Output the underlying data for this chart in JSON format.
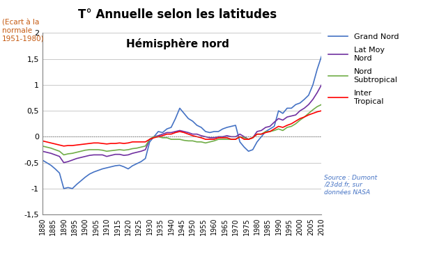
{
  "title1": "T° Annuelle selon les latitudes",
  "title2": "Hémisphère nord",
  "ylabel_text": "(Ecart à la\nnormale\n1951-1980)",
  "source_text": "Source : Dumont\n/23dd.fr, sur\ndonnées NASA",
  "ylim": [
    -1.5,
    2.0
  ],
  "yticks": [
    -1.5,
    -1.0,
    -0.5,
    0.0,
    0.5,
    1.0,
    1.5,
    2.0
  ],
  "ytick_labels": [
    "-1,5",
    "-1",
    "-0,5",
    "0",
    "0,5",
    "1",
    "1,5",
    "2"
  ],
  "colors": {
    "Grand Nord": "#4472C4",
    "Lat Moy Nord": "#7030A0",
    "Nord Subtropical": "#70AD47",
    "Inter Tropical": "#FF0000"
  },
  "years": [
    1880,
    1882,
    1884,
    1886,
    1888,
    1890,
    1892,
    1894,
    1896,
    1898,
    1900,
    1902,
    1904,
    1906,
    1908,
    1910,
    1912,
    1914,
    1916,
    1918,
    1920,
    1922,
    1924,
    1926,
    1928,
    1930,
    1932,
    1934,
    1936,
    1938,
    1940,
    1942,
    1944,
    1946,
    1948,
    1950,
    1952,
    1954,
    1956,
    1958,
    1960,
    1962,
    1964,
    1966,
    1968,
    1970,
    1972,
    1974,
    1976,
    1978,
    1980,
    1982,
    1984,
    1986,
    1988,
    1990,
    1992,
    1994,
    1996,
    1998,
    2000,
    2002,
    2004,
    2006,
    2008,
    2010
  ],
  "Grand Nord": [
    -0.45,
    -0.5,
    -0.55,
    -0.62,
    -0.7,
    -1.0,
    -0.98,
    -1.0,
    -0.92,
    -0.85,
    -0.78,
    -0.72,
    -0.68,
    -0.65,
    -0.62,
    -0.6,
    -0.58,
    -0.56,
    -0.55,
    -0.58,
    -0.62,
    -0.56,
    -0.52,
    -0.48,
    -0.42,
    -0.1,
    0.0,
    0.1,
    0.08,
    0.15,
    0.18,
    0.35,
    0.55,
    0.45,
    0.35,
    0.3,
    0.22,
    0.18,
    0.1,
    0.08,
    0.1,
    0.1,
    0.15,
    0.18,
    0.2,
    0.22,
    -0.1,
    -0.2,
    -0.28,
    -0.25,
    -0.1,
    0.0,
    0.1,
    0.15,
    0.2,
    0.5,
    0.45,
    0.55,
    0.55,
    0.62,
    0.65,
    0.72,
    0.8,
    1.0,
    1.3,
    1.55
  ],
  "Lat Moy Nord": [
    -0.28,
    -0.3,
    -0.32,
    -0.35,
    -0.38,
    -0.5,
    -0.48,
    -0.45,
    -0.42,
    -0.4,
    -0.38,
    -0.36,
    -0.35,
    -0.35,
    -0.35,
    -0.38,
    -0.36,
    -0.34,
    -0.34,
    -0.36,
    -0.35,
    -0.32,
    -0.3,
    -0.28,
    -0.25,
    -0.05,
    0.0,
    0.02,
    0.05,
    0.08,
    0.08,
    0.1,
    0.12,
    0.1,
    0.08,
    0.05,
    0.05,
    0.02,
    0.0,
    -0.02,
    -0.02,
    0.0,
    0.0,
    0.02,
    0.0,
    0.0,
    0.05,
    0.0,
    -0.05,
    -0.02,
    0.1,
    0.12,
    0.18,
    0.2,
    0.28,
    0.35,
    0.32,
    0.38,
    0.4,
    0.42,
    0.5,
    0.55,
    0.62,
    0.72,
    0.85,
    1.0
  ],
  "Nord Subtropical": [
    -0.18,
    -0.2,
    -0.22,
    -0.25,
    -0.28,
    -0.35,
    -0.33,
    -0.32,
    -0.3,
    -0.28,
    -0.26,
    -0.25,
    -0.25,
    -0.25,
    -0.26,
    -0.28,
    -0.27,
    -0.26,
    -0.25,
    -0.26,
    -0.25,
    -0.23,
    -0.22,
    -0.2,
    -0.18,
    -0.05,
    0.0,
    0.0,
    -0.02,
    -0.02,
    -0.05,
    -0.05,
    -0.05,
    -0.07,
    -0.08,
    -0.08,
    -0.1,
    -0.1,
    -0.12,
    -0.1,
    -0.08,
    -0.05,
    -0.05,
    -0.05,
    -0.05,
    -0.05,
    0.0,
    -0.02,
    -0.05,
    -0.02,
    0.05,
    0.05,
    0.1,
    0.1,
    0.12,
    0.15,
    0.12,
    0.18,
    0.2,
    0.25,
    0.32,
    0.38,
    0.45,
    0.52,
    0.58,
    0.62
  ],
  "Inter Tropical": [
    -0.08,
    -0.1,
    -0.12,
    -0.14,
    -0.16,
    -0.18,
    -0.17,
    -0.17,
    -0.16,
    -0.15,
    -0.14,
    -0.13,
    -0.12,
    -0.12,
    -0.13,
    -0.14,
    -0.13,
    -0.13,
    -0.12,
    -0.13,
    -0.12,
    -0.1,
    -0.1,
    -0.1,
    -0.1,
    -0.05,
    -0.02,
    0.0,
    0.02,
    0.05,
    0.05,
    0.08,
    0.1,
    0.08,
    0.05,
    0.02,
    0.0,
    -0.02,
    -0.05,
    -0.05,
    -0.05,
    -0.02,
    -0.02,
    -0.02,
    -0.05,
    -0.05,
    0.0,
    -0.05,
    -0.05,
    -0.02,
    0.05,
    0.05,
    0.08,
    0.1,
    0.15,
    0.2,
    0.18,
    0.22,
    0.25,
    0.3,
    0.35,
    0.38,
    0.42,
    0.45,
    0.48,
    0.5
  ],
  "background": "#FFFFFF",
  "ylabel_color": "#C55A11",
  "source_color": "#4472C4"
}
